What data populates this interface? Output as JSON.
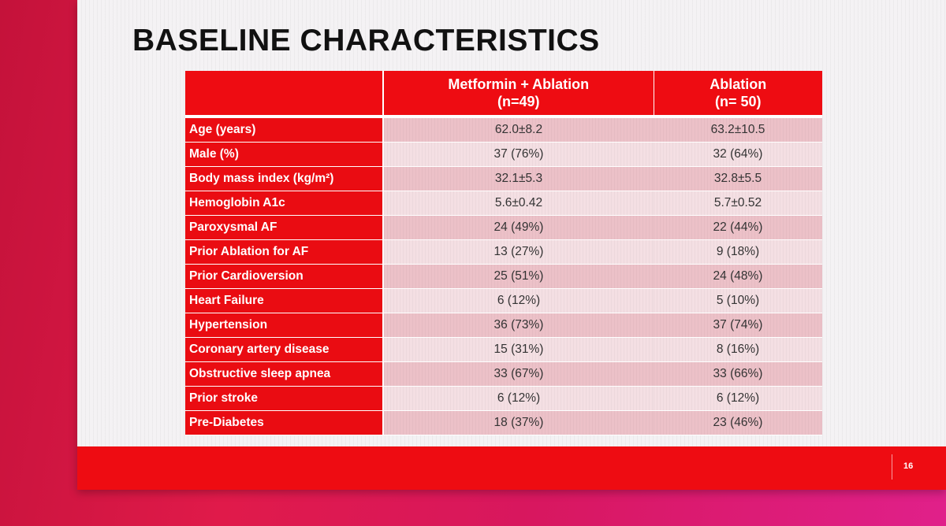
{
  "slide": {
    "title": "BASELINE CHARACTERISTICS",
    "page_number": "16"
  },
  "table": {
    "columns": [
      {
        "name": "Metformin + Ablation",
        "n": "(n=49)"
      },
      {
        "name": "Ablation",
        "n": "(n= 50)"
      }
    ],
    "rows": [
      {
        "label": "Age (years)",
        "metformin_ablation": "62.0±8.2",
        "ablation": "63.2±10.5"
      },
      {
        "label": "Male (%)",
        "metformin_ablation": "37 (76%)",
        "ablation": "32 (64%)"
      },
      {
        "label": "Body mass index (kg/m²)",
        "metformin_ablation": "32.1±5.3",
        "ablation": "32.8±5.5"
      },
      {
        "label": "Hemoglobin A1c",
        "metformin_ablation": "5.6±0.42",
        "ablation": "5.7±0.52"
      },
      {
        "label": "Paroxysmal AF",
        "metformin_ablation": "24 (49%)",
        "ablation": "22 (44%)"
      },
      {
        "label": "Prior Ablation for AF",
        "metformin_ablation": "13 (27%)",
        "ablation": "9 (18%)"
      },
      {
        "label": "Prior Cardioversion",
        "metformin_ablation": "25 (51%)",
        "ablation": "24 (48%)"
      },
      {
        "label": "Heart Failure",
        "metformin_ablation": "6 (12%)",
        "ablation": "5 (10%)"
      },
      {
        "label": "Hypertension",
        "metformin_ablation": "36 (73%)",
        "ablation": "37 (74%)"
      },
      {
        "label": "Coronary artery disease",
        "metformin_ablation": "15 (31%)",
        "ablation": "8 (16%)"
      },
      {
        "label": "Obstructive sleep apnea",
        "metformin_ablation": "33 (67%)",
        "ablation": "33 (66%)"
      },
      {
        "label": "Prior stroke",
        "metformin_ablation": "6 (12%)",
        "ablation": "6 (12%)"
      },
      {
        "label": "Pre-Diabetes",
        "metformin_ablation": "18 (37%)",
        "ablation": "23 (46%)"
      }
    ]
  },
  "colors": {
    "accent_red": "#ee0c12",
    "row_shade_dark": "#ecc1c8",
    "row_shade_light": "#f4dfe3"
  }
}
